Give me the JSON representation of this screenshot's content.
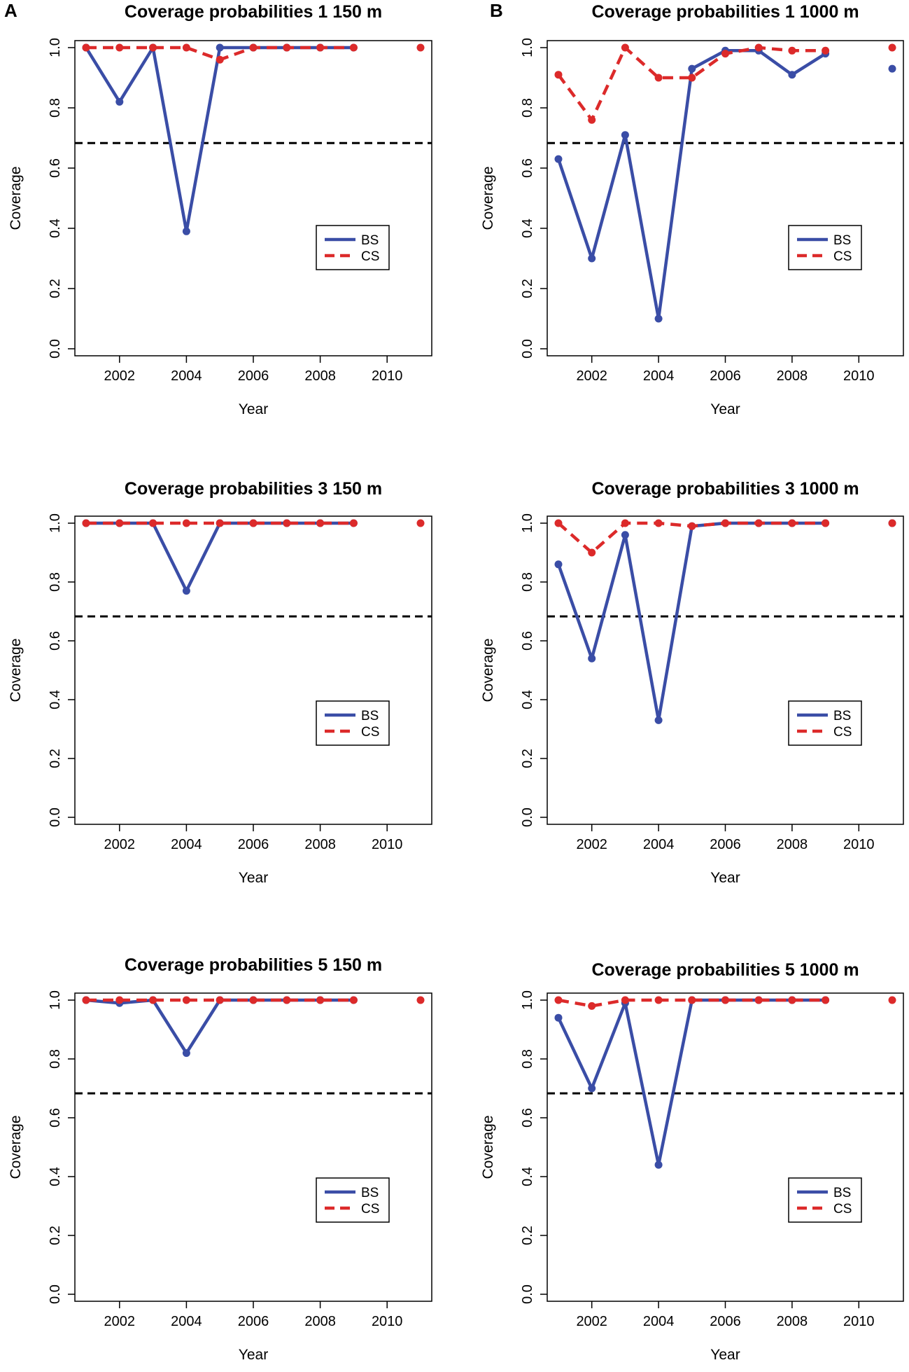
{
  "figure": {
    "panel_labels": [
      "A",
      "B"
    ],
    "colors": {
      "BS": "#3a4da6",
      "CS": "#dc2a2a",
      "reference": "#000000"
    }
  },
  "chart_data": [
    {
      "type": "line",
      "title": "Coverage probabilities 1 150 m",
      "xlabel": "Year",
      "ylabel": "Coverage",
      "xlim": [
        2001,
        2011
      ],
      "ylim": [
        0,
        1
      ],
      "xticks": [
        "2002",
        "2004",
        "2006",
        "2008",
        "2010"
      ],
      "yticks": [
        "0.0",
        "0.2",
        "0.4",
        "0.6",
        "0.8",
        "1.0"
      ],
      "reference_line": 0.683,
      "legend": [
        "BS",
        "CS"
      ],
      "series": [
        {
          "name": "BS",
          "x": [
            2001,
            2002,
            2003,
            2004,
            2005,
            2006,
            2007,
            2008,
            2009
          ],
          "values": [
            1.0,
            0.82,
            1.0,
            0.39,
            1.0,
            1.0,
            1.0,
            1.0,
            1.0
          ]
        },
        {
          "name": "CS",
          "x": [
            2001,
            2002,
            2003,
            2004,
            2005,
            2006,
            2007,
            2008,
            2009,
            2011
          ],
          "values": [
            1.0,
            1.0,
            1.0,
            1.0,
            0.96,
            1.0,
            1.0,
            1.0,
            1.0,
            1.0
          ]
        }
      ]
    },
    {
      "type": "line",
      "title": "Coverage probabilities 1 1000 m",
      "xlabel": "Year",
      "ylabel": "Coverage",
      "xlim": [
        2001,
        2011
      ],
      "ylim": [
        0,
        1
      ],
      "xticks": [
        "2002",
        "2004",
        "2006",
        "2008",
        "2010"
      ],
      "yticks": [
        "0.0",
        "0.2",
        "0.4",
        "0.6",
        "0.8",
        "1.0"
      ],
      "reference_line": 0.683,
      "legend": [
        "BS",
        "CS"
      ],
      "series": [
        {
          "name": "BS",
          "x": [
            2001,
            2002,
            2003,
            2004,
            2005,
            2006,
            2007,
            2008,
            2009,
            2011
          ],
          "values": [
            0.63,
            0.3,
            0.71,
            0.1,
            0.93,
            0.99,
            0.99,
            0.91,
            0.98,
            0.93
          ]
        },
        {
          "name": "CS",
          "x": [
            2001,
            2002,
            2003,
            2004,
            2005,
            2006,
            2007,
            2008,
            2009,
            2011
          ],
          "values": [
            0.91,
            0.76,
            1.0,
            0.9,
            0.9,
            0.98,
            1.0,
            0.99,
            0.99,
            1.0
          ]
        }
      ]
    },
    {
      "type": "line",
      "title": "Coverage probabilities 3 150 m",
      "xlabel": "Year",
      "ylabel": "Coverage",
      "xlim": [
        2001,
        2011
      ],
      "ylim": [
        0,
        1
      ],
      "xticks": [
        "2002",
        "2004",
        "2006",
        "2008",
        "2010"
      ],
      "yticks": [
        "0.0",
        "0.2",
        "0.4",
        "0.6",
        "0.8",
        "1.0"
      ],
      "reference_line": 0.683,
      "legend": [
        "BS",
        "CS"
      ],
      "series": [
        {
          "name": "BS",
          "x": [
            2001,
            2002,
            2003,
            2004,
            2005,
            2006,
            2007,
            2008,
            2009
          ],
          "values": [
            1.0,
            1.0,
            1.0,
            0.77,
            1.0,
            1.0,
            1.0,
            1.0,
            1.0
          ]
        },
        {
          "name": "CS",
          "x": [
            2001,
            2002,
            2003,
            2004,
            2005,
            2006,
            2007,
            2008,
            2009,
            2011
          ],
          "values": [
            1.0,
            1.0,
            1.0,
            1.0,
            1.0,
            1.0,
            1.0,
            1.0,
            1.0,
            1.0
          ]
        }
      ]
    },
    {
      "type": "line",
      "title": "Coverage probabilities 3 1000 m",
      "xlabel": "Year",
      "ylabel": "Coverage",
      "xlim": [
        2001,
        2011
      ],
      "ylim": [
        0,
        1
      ],
      "xticks": [
        "2002",
        "2004",
        "2006",
        "2008",
        "2010"
      ],
      "yticks": [
        "0.0",
        "0.2",
        "0.4",
        "0.6",
        "0.8",
        "1.0"
      ],
      "reference_line": 0.683,
      "legend": [
        "BS",
        "CS"
      ],
      "series": [
        {
          "name": "BS",
          "x": [
            2001,
            2002,
            2003,
            2004,
            2005,
            2006,
            2007,
            2008,
            2009,
            2011
          ],
          "values": [
            0.86,
            0.54,
            0.96,
            0.33,
            0.99,
            1.0,
            1.0,
            1.0,
            1.0,
            1.0
          ]
        },
        {
          "name": "CS",
          "x": [
            2001,
            2002,
            2003,
            2004,
            2005,
            2006,
            2007,
            2008,
            2009,
            2011
          ],
          "values": [
            1.0,
            0.9,
            1.0,
            1.0,
            0.99,
            1.0,
            1.0,
            1.0,
            1.0,
            1.0
          ]
        }
      ]
    },
    {
      "type": "line",
      "title": "Coverage probabilities 5 150 m",
      "xlabel": "Year",
      "ylabel": "Coverage",
      "xlim": [
        2001,
        2011
      ],
      "ylim": [
        0,
        1
      ],
      "xticks": [
        "2002",
        "2004",
        "2006",
        "2008",
        "2010"
      ],
      "yticks": [
        "0.0",
        "0.2",
        "0.4",
        "0.6",
        "0.8",
        "1.0"
      ],
      "reference_line": 0.683,
      "legend": [
        "BS",
        "CS"
      ],
      "series": [
        {
          "name": "BS",
          "x": [
            2001,
            2002,
            2003,
            2004,
            2005,
            2006,
            2007,
            2008,
            2009
          ],
          "values": [
            1.0,
            0.99,
            1.0,
            0.82,
            1.0,
            1.0,
            1.0,
            1.0,
            1.0
          ]
        },
        {
          "name": "CS",
          "x": [
            2001,
            2002,
            2003,
            2004,
            2005,
            2006,
            2007,
            2008,
            2009,
            2011
          ],
          "values": [
            1.0,
            1.0,
            1.0,
            1.0,
            1.0,
            1.0,
            1.0,
            1.0,
            1.0,
            1.0
          ]
        }
      ]
    },
    {
      "type": "line",
      "title": "Coverage probabilities 5 1000 m",
      "xlabel": "Year",
      "ylabel": "Coverage",
      "xlim": [
        2001,
        2011
      ],
      "ylim": [
        0,
        1
      ],
      "xticks": [
        "2002",
        "2004",
        "2006",
        "2008",
        "2010"
      ],
      "yticks": [
        "0.0",
        "0.2",
        "0.4",
        "0.6",
        "0.8",
        "1.0"
      ],
      "reference_line": 0.683,
      "legend": [
        "BS",
        "CS"
      ],
      "series": [
        {
          "name": "BS",
          "x": [
            2001,
            2002,
            2003,
            2004,
            2005,
            2006,
            2007,
            2008,
            2009
          ],
          "values": [
            0.94,
            0.7,
            0.99,
            0.44,
            1.0,
            1.0,
            1.0,
            1.0,
            1.0
          ]
        },
        {
          "name": "CS",
          "x": [
            2001,
            2002,
            2003,
            2004,
            2005,
            2006,
            2007,
            2008,
            2009,
            2011
          ],
          "values": [
            1.0,
            0.98,
            1.0,
            1.0,
            1.0,
            1.0,
            1.0,
            1.0,
            1.0,
            1.0
          ]
        }
      ]
    }
  ]
}
